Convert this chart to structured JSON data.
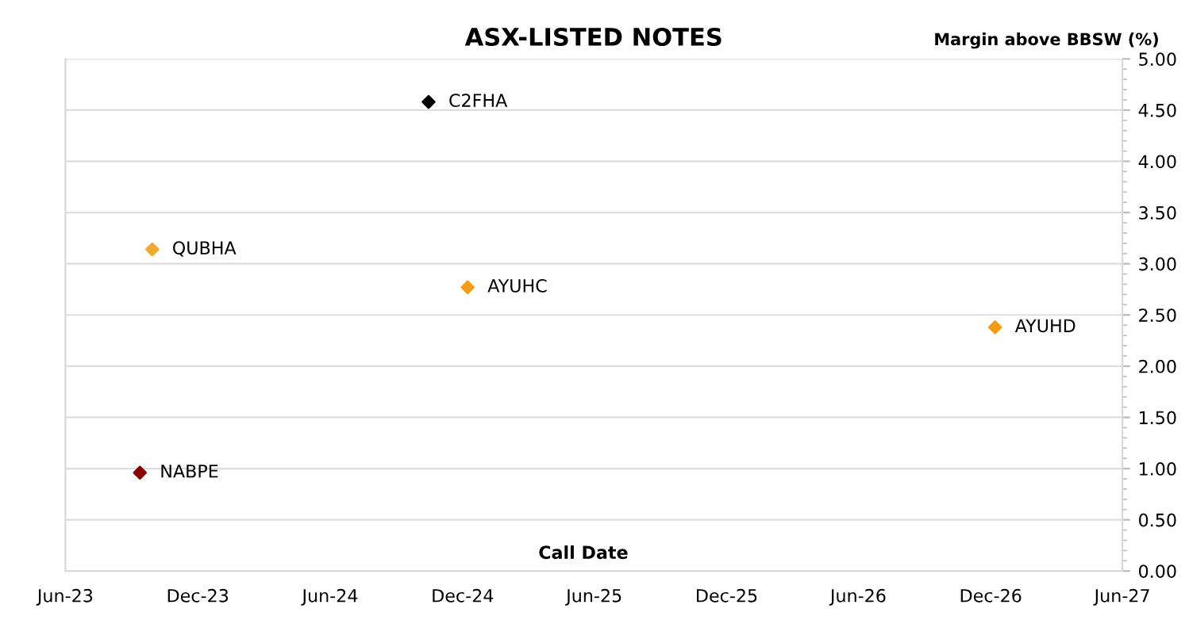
{
  "chart_data": {
    "type": "scatter",
    "title": "ASX-LISTED NOTES",
    "xlabel": "Call Date",
    "ylabel": "Margin above BBSW (%)",
    "series": [
      {
        "name": "NABPE",
        "color": "#8b0000",
        "x": [
          "2023-09-12"
        ],
        "values": [
          0.96
        ]
      },
      {
        "name": "QUBHA",
        "color": "#f0a830",
        "x": [
          "2023-09-29"
        ],
        "values": [
          3.14
        ]
      },
      {
        "name": "C2FHA",
        "color": "#000000",
        "x": [
          "2024-10-15"
        ],
        "values": [
          4.58
        ]
      },
      {
        "name": "AYUHC",
        "color": "#f39c12",
        "x": [
          "2024-12-08"
        ],
        "values": [
          2.77
        ]
      },
      {
        "name": "AYUHD",
        "color": "#f39c12",
        "x": [
          "2026-12-07"
        ],
        "values": [
          2.38
        ]
      }
    ],
    "xlim": [
      "2023-06-01",
      "2027-06-01"
    ],
    "xticks": [
      {
        "value": "2023-06-01",
        "label": "Jun-23"
      },
      {
        "value": "2023-12-01",
        "label": "Dec-23"
      },
      {
        "value": "2024-06-01",
        "label": "Jun-24"
      },
      {
        "value": "2024-12-01",
        "label": "Dec-24"
      },
      {
        "value": "2025-06-01",
        "label": "Jun-25"
      },
      {
        "value": "2025-12-01",
        "label": "Dec-25"
      },
      {
        "value": "2026-06-01",
        "label": "Jun-26"
      },
      {
        "value": "2026-12-01",
        "label": "Dec-26"
      },
      {
        "value": "2027-06-01",
        "label": "Jun-27"
      }
    ],
    "ylim": [
      0,
      5
    ],
    "yticks": [
      {
        "value": 0,
        "label": "0.00"
      },
      {
        "value": 0.5,
        "label": "0.50"
      },
      {
        "value": 1,
        "label": "1.00"
      },
      {
        "value": 1.5,
        "label": "1.50"
      },
      {
        "value": 2,
        "label": "2.00"
      },
      {
        "value": 2.5,
        "label": "2.50"
      },
      {
        "value": 3,
        "label": "3.00"
      },
      {
        "value": 3.5,
        "label": "3.50"
      },
      {
        "value": 4,
        "label": "4.00"
      },
      {
        "value": 4.5,
        "label": "4.50"
      },
      {
        "value": 5,
        "label": "5.00"
      }
    ],
    "grid": "y",
    "legend": false,
    "marker": "diamond"
  }
}
